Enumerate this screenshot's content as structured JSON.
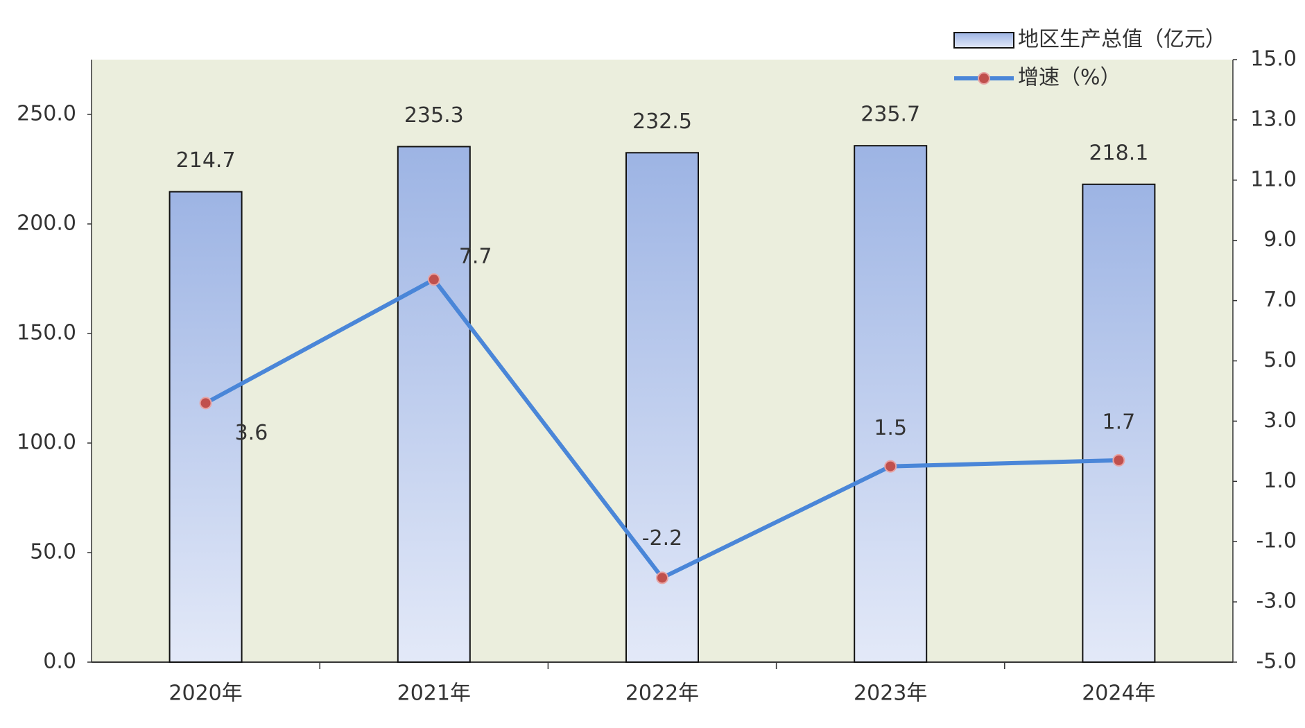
{
  "chart_data": {
    "type": "combo",
    "categories": [
      "2020年",
      "2021年",
      "2022年",
      "2023年",
      "2024年"
    ],
    "series": [
      {
        "name": "地区生产总值（亿元）",
        "type": "bar",
        "color": "#9db4e4",
        "values": [
          214.7,
          235.3,
          232.5,
          235.7,
          218.1
        ]
      },
      {
        "name": "增速（%）",
        "type": "line",
        "axis": "y2",
        "color": "#4a86d8",
        "marker_color": "#c0504d",
        "values": [
          3.6,
          7.7,
          -2.2,
          1.5,
          1.7
        ]
      }
    ],
    "ylim": [
      0,
      275
    ],
    "yticks": [
      {
        "value": 0,
        "label": "0.0"
      },
      {
        "value": 50,
        "label": "50.0"
      },
      {
        "value": 100,
        "label": "100.0"
      },
      {
        "value": 150,
        "label": "150.0"
      },
      {
        "value": 200,
        "label": "200.0"
      },
      {
        "value": 250,
        "label": "250.0"
      }
    ],
    "y2lim": [
      -5,
      15
    ],
    "y2ticks": [
      {
        "value": -5,
        "label": "-5.0"
      },
      {
        "value": -3,
        "label": "-3.0"
      },
      {
        "value": -1,
        "label": "-1.0"
      },
      {
        "value": 1,
        "label": "1.0"
      },
      {
        "value": 3,
        "label": "3.0"
      },
      {
        "value": 5,
        "label": "5.0"
      },
      {
        "value": 7,
        "label": "7.0"
      },
      {
        "value": 9,
        "label": "9.0"
      },
      {
        "value": 11,
        "label": "11.0"
      },
      {
        "value": 13,
        "label": "13.0"
      },
      {
        "value": 15,
        "label": "15.0"
      }
    ],
    "legend": "top-right",
    "grid": false
  }
}
